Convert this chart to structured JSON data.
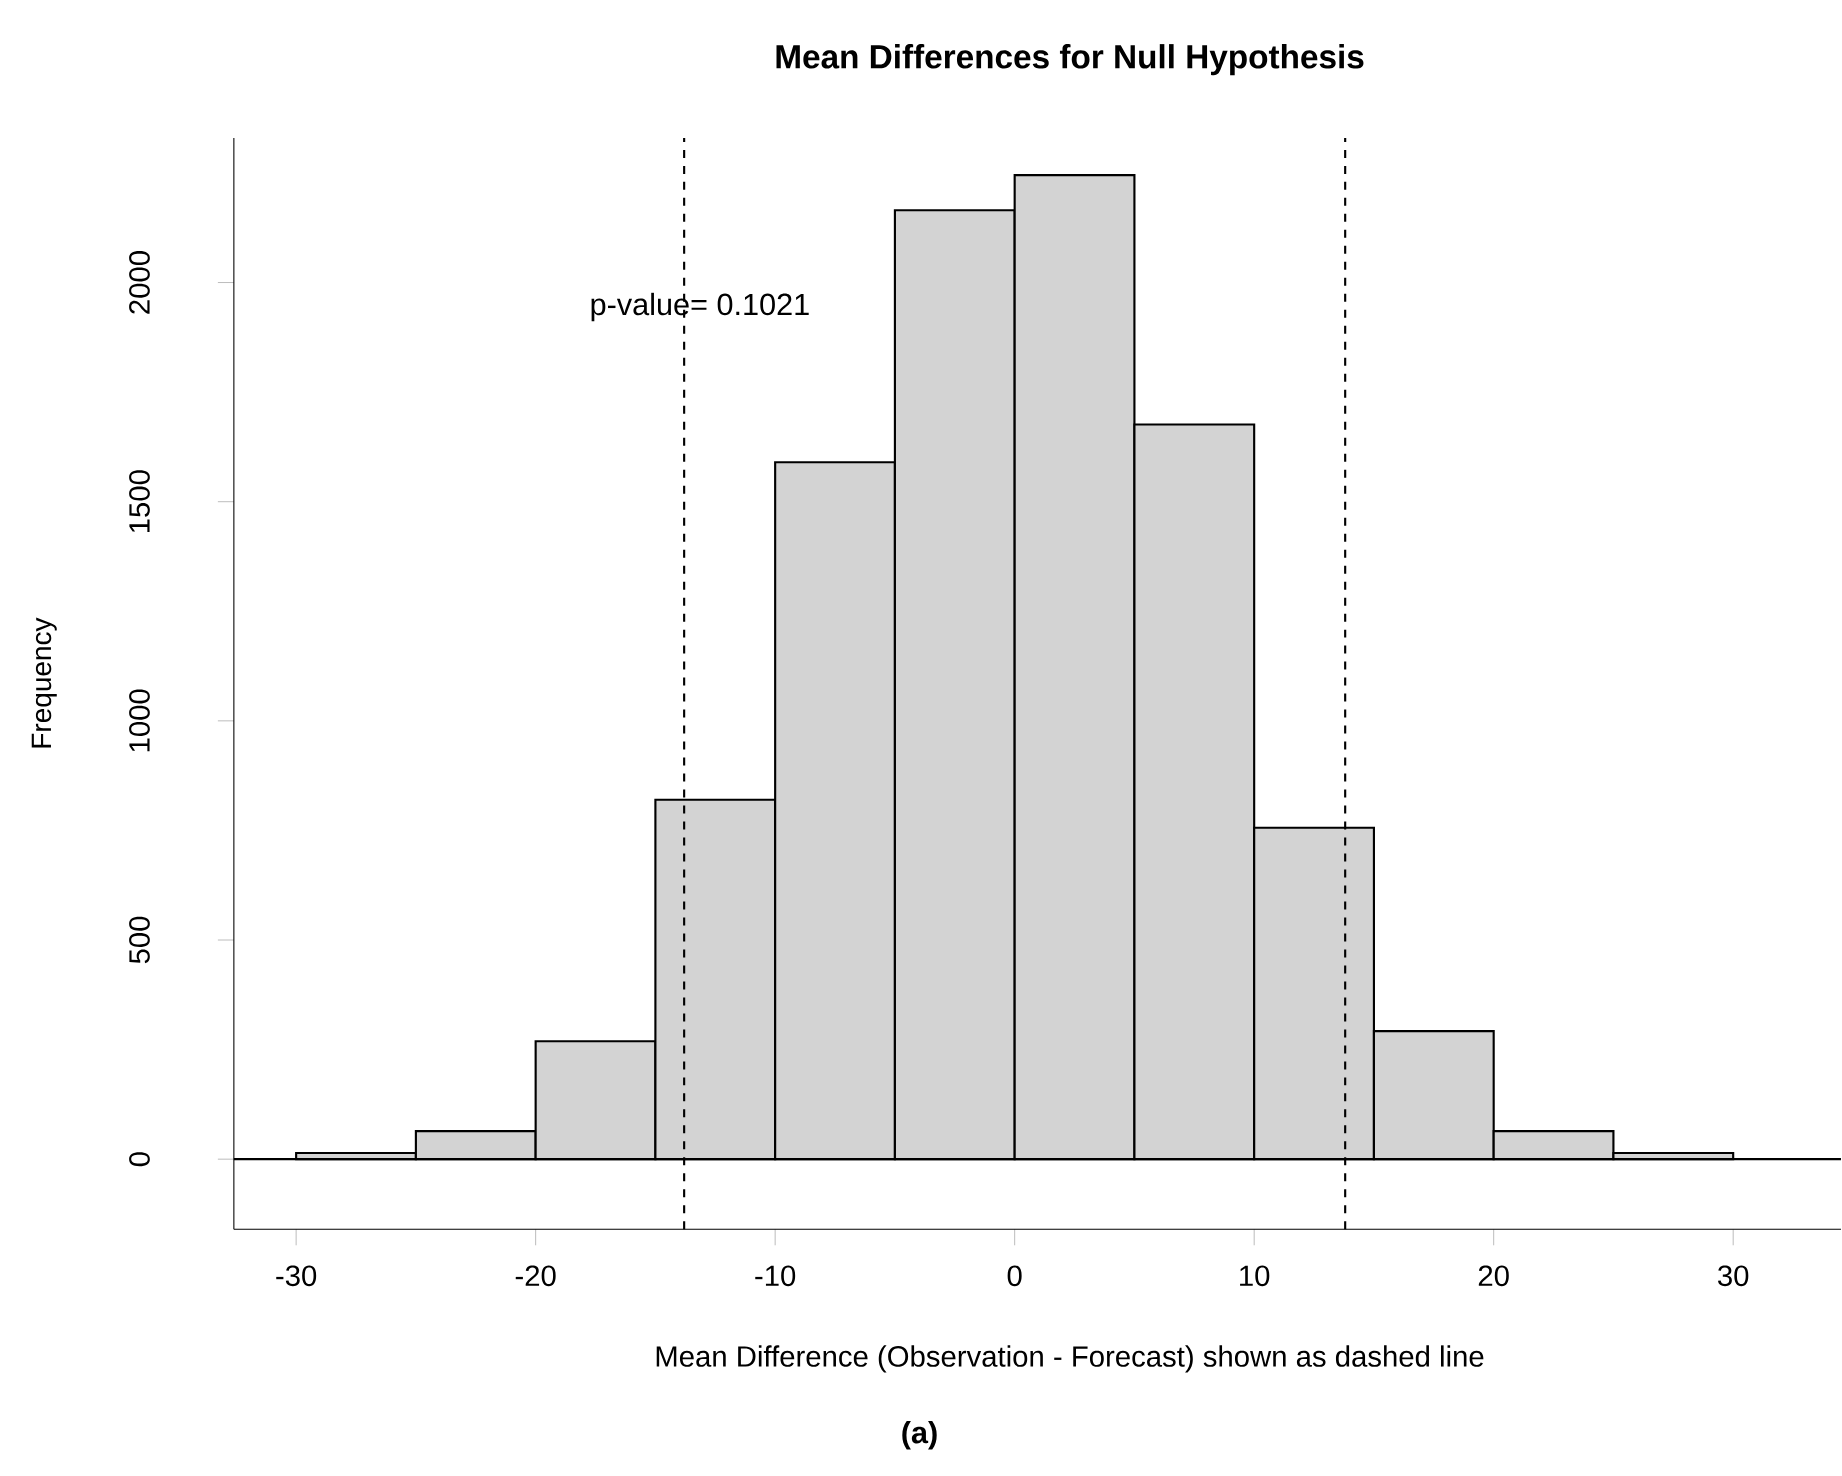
{
  "chart_data": {
    "type": "histogram",
    "title": "Mean Differences for Null Hypothesis",
    "xlabel": "Mean Difference (Observation - Forecast) shown as dashed line",
    "ylabel": "Frequency",
    "bins": [
      -30,
      -25,
      -20,
      -15,
      -10,
      -5,
      0,
      5,
      10,
      15,
      20,
      25,
      30
    ],
    "values": [
      14,
      64,
      269,
      820,
      1590,
      2165,
      2245,
      1676,
      756,
      292,
      64,
      14
    ],
    "color": "#d3d3d3",
    "xlim": [
      -32.6,
      34.5
    ],
    "ylim": [
      -160,
      2330
    ],
    "xticks": [
      -30,
      -20,
      -10,
      0,
      10,
      20,
      30
    ],
    "yticks": [
      0,
      500,
      1000,
      1500,
      2000
    ],
    "ref_lines": [
      {
        "axis": "x",
        "value": -13.8,
        "line_style": "dashed"
      },
      {
        "axis": "x",
        "value": 13.8,
        "line_style": "dashed"
      },
      {
        "axis": "y",
        "value": 0,
        "line_style": "solid"
      }
    ],
    "annotations": [
      "p-value=  0.1021",
      "(a)"
    ]
  }
}
